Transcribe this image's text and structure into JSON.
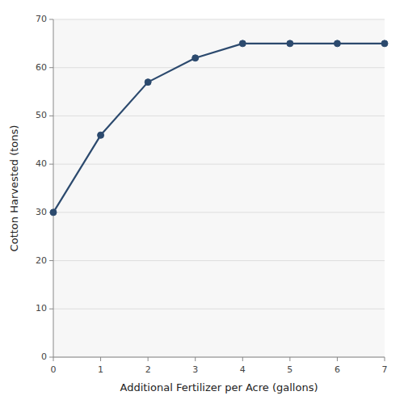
{
  "chart_data": {
    "type": "line",
    "x": [
      0,
      1,
      2,
      3,
      4,
      5,
      6,
      7
    ],
    "y": [
      30,
      46,
      57,
      62,
      65,
      65,
      65,
      65
    ],
    "xlabel": "Additional Fertilizer per Acre (gallons)",
    "ylabel": "Cotton Harvested (tons)",
    "xlim": [
      0,
      7
    ],
    "ylim": [
      0,
      70
    ],
    "xticks": [
      0,
      1,
      2,
      3,
      4,
      5,
      6,
      7
    ],
    "yticks": [
      0,
      10,
      20,
      30,
      40,
      50,
      60,
      70
    ],
    "color": "#2c4a6e",
    "marker": "circle",
    "grid": "y"
  }
}
